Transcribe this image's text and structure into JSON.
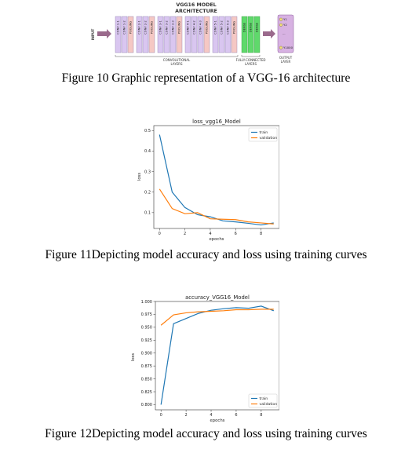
{
  "vgg": {
    "title_line1": "VGG16 MODEL",
    "title_line2": "ARCHITECTURE",
    "input_label": "INPUT",
    "blocks": [
      [
        "CONV 1-1",
        "CONV 1-2",
        "POOLING"
      ],
      [
        "CONV 2-1",
        "CONV 2-2",
        "POOLING"
      ],
      [
        "CONV 3-1",
        "CONV 3-2",
        "CONV 3-3",
        "POOLING"
      ],
      [
        "CONV 4-1",
        "CONV 4-2",
        "CONV 4-3",
        "POOLING"
      ],
      [
        "CONV 5-1",
        "CONV 5-2",
        "CONV 5-3",
        "POOLING"
      ]
    ],
    "dense": [
      "DENSE",
      "DENSE",
      "DENSE"
    ],
    "conv_group_label_1": "CONVOLUTIONAL",
    "conv_group_label_2": "LAYERS",
    "fc_group_label_1": "FULLY-CONNECTED",
    "fc_group_label_2": "LAYERS",
    "output_items": [
      "Y1",
      "Y2",
      "...",
      "Y1000"
    ],
    "output_label_1": "OUTPUT",
    "output_label_2": "LAYER",
    "colors": {
      "conv": "#d9c6f0",
      "pool": "#f5c8c4",
      "dense": "#5fd96b",
      "output": "#d7b2e2",
      "arrow": "#9a6a8c"
    }
  },
  "captions": {
    "fig10": "Figure 10 Graphic representation of a VGG-16 architecture",
    "fig11": "Figure 11Depicting model accuracy and loss using training curves",
    "fig12": "Figure 12Depicting model accuracy and loss using training curves"
  },
  "chart_data": [
    {
      "type": "line",
      "title": "loss_vgg16_Model",
      "xlabel": "epochs",
      "ylabel": "loss",
      "x": [
        0,
        1,
        2,
        3,
        4,
        5,
        6,
        7,
        8,
        9
      ],
      "xticks": [
        0,
        2,
        4,
        6,
        8
      ],
      "yticks": [
        0.1,
        0.2,
        0.3,
        0.4,
        0.5
      ],
      "xlim": [
        -0.45,
        9.45
      ],
      "ylim": [
        0.023,
        0.524
      ],
      "legend_position": "top-right",
      "series": [
        {
          "name": "train",
          "color": "#1f77b4",
          "values": [
            0.48,
            0.2,
            0.125,
            0.09,
            0.08,
            0.06,
            0.055,
            0.048,
            0.04,
            0.05
          ]
        },
        {
          "name": "validation",
          "color": "#ff7f0e",
          "values": [
            0.215,
            0.12,
            0.095,
            0.1,
            0.07,
            0.068,
            0.066,
            0.055,
            0.05,
            0.045
          ]
        }
      ]
    },
    {
      "type": "line",
      "title": "accuracy_VGG16_Model",
      "xlabel": "epochs",
      "ylabel": "loss",
      "x": [
        0,
        1,
        2,
        3,
        4,
        5,
        6,
        7,
        8,
        9
      ],
      "xticks": [
        0,
        2,
        4,
        6,
        8
      ],
      "yticks": [
        0.8,
        0.825,
        0.85,
        0.875,
        0.9,
        0.925,
        0.95,
        0.975,
        1.0
      ],
      "ytick_labels": [
        "0.800",
        "0.825",
        "0.850",
        "0.875",
        "0.900",
        "0.925",
        "0.950",
        "0.975",
        "1.000"
      ],
      "xlim": [
        -0.45,
        9.45
      ],
      "ylim": [
        0.79,
        1.0
      ],
      "legend_position": "bottom-right",
      "series": [
        {
          "name": "train",
          "color": "#1f77b4",
          "values": [
            0.8,
            0.957,
            0.967,
            0.977,
            0.983,
            0.986,
            0.988,
            0.987,
            0.991,
            0.982
          ]
        },
        {
          "name": "validation",
          "color": "#ff7f0e",
          "values": [
            0.954,
            0.974,
            0.978,
            0.98,
            0.981,
            0.982,
            0.984,
            0.984,
            0.985,
            0.985
          ]
        }
      ]
    }
  ]
}
